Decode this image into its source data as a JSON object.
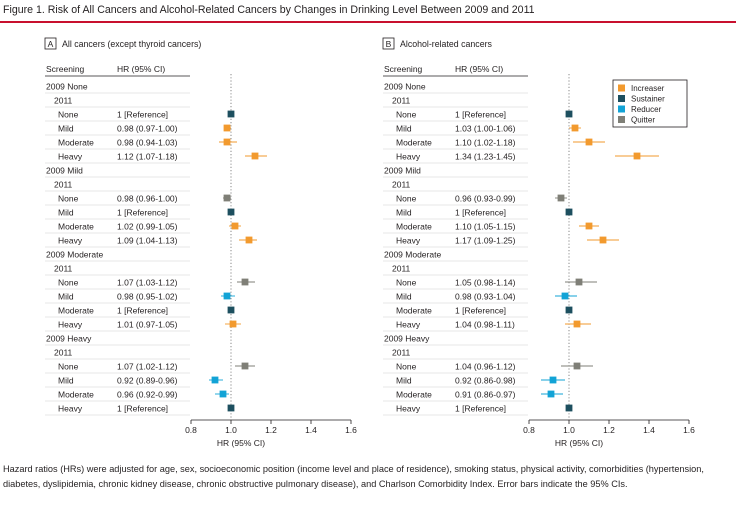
{
  "figure": {
    "title": "Figure 1. Risk of All Cancers and Alcohol-Related Cancers by Changes in Drinking Level Between 2009 and 2011",
    "footnote": "Hazard ratios (HRs) were adjusted for age, sex, socioeconomic position (income level and place of residence), smoking status, physical activity, comorbidities (hypertension, diabetes, dyslipidemia, chronic kidney disease, chronic obstructive pulmonary disease), and Charlson Comorbidity Index. Error bars indicate the 95% CIs."
  },
  "headers": {
    "screening": "Screening",
    "hr": "HR (95% CI)"
  },
  "legend": [
    {
      "name": "Increaser",
      "color": "#f29a2e"
    },
    {
      "name": "Sustainer",
      "color": "#1d4f5f"
    },
    {
      "name": "Reducer",
      "color": "#12a3d6"
    },
    {
      "name": "Quitter",
      "color": "#7f7f77"
    }
  ],
  "chart_data": [
    {
      "type": "forest",
      "panel_letter": "A",
      "title": "All cancers (except thyroid cancers)",
      "xlabel": "HR (95% CI)",
      "xlim": [
        0.8,
        1.6
      ],
      "xticks": [
        "0.8",
        "1.0",
        "1.2",
        "1.4",
        "1.6"
      ],
      "reference_line": 1.0,
      "groups": [
        {
          "label": "2009 None",
          "sublabel": "2011",
          "rows": [
            {
              "level": "None",
              "hr_text": "1 [Reference]",
              "hr": 1.0,
              "lo": null,
              "hi": null,
              "status": "Sustainer"
            },
            {
              "level": "Mild",
              "hr_text": "0.98 (0.97-1.00)",
              "hr": 0.98,
              "lo": 0.97,
              "hi": 1.0,
              "status": "Increaser"
            },
            {
              "level": "Moderate",
              "hr_text": "0.98 (0.94-1.03)",
              "hr": 0.98,
              "lo": 0.94,
              "hi": 1.03,
              "status": "Increaser"
            },
            {
              "level": "Heavy",
              "hr_text": "1.12 (1.07-1.18)",
              "hr": 1.12,
              "lo": 1.07,
              "hi": 1.18,
              "status": "Increaser"
            }
          ]
        },
        {
          "label": "2009 Mild",
          "sublabel": "2011",
          "rows": [
            {
              "level": "None",
              "hr_text": "0.98 (0.96-1.00)",
              "hr": 0.98,
              "lo": 0.96,
              "hi": 1.0,
              "status": "Quitter"
            },
            {
              "level": "Mild",
              "hr_text": "1 [Reference]",
              "hr": 1.0,
              "lo": null,
              "hi": null,
              "status": "Sustainer"
            },
            {
              "level": "Moderate",
              "hr_text": "1.02 (0.99-1.05)",
              "hr": 1.02,
              "lo": 0.99,
              "hi": 1.05,
              "status": "Increaser"
            },
            {
              "level": "Heavy",
              "hr_text": "1.09 (1.04-1.13)",
              "hr": 1.09,
              "lo": 1.04,
              "hi": 1.13,
              "status": "Increaser"
            }
          ]
        },
        {
          "label": "2009 Moderate",
          "sublabel": "2011",
          "rows": [
            {
              "level": "None",
              "hr_text": "1.07 (1.03-1.12)",
              "hr": 1.07,
              "lo": 1.03,
              "hi": 1.12,
              "status": "Quitter"
            },
            {
              "level": "Mild",
              "hr_text": "0.98 (0.95-1.02)",
              "hr": 0.98,
              "lo": 0.95,
              "hi": 1.02,
              "status": "Reducer"
            },
            {
              "level": "Moderate",
              "hr_text": "1 [Reference]",
              "hr": 1.0,
              "lo": null,
              "hi": null,
              "status": "Sustainer"
            },
            {
              "level": "Heavy",
              "hr_text": "1.01 (0.97-1.05)",
              "hr": 1.01,
              "lo": 0.97,
              "hi": 1.05,
              "status": "Increaser"
            }
          ]
        },
        {
          "label": "2009 Heavy",
          "sublabel": "2011",
          "rows": [
            {
              "level": "None",
              "hr_text": "1.07 (1.02-1.12)",
              "hr": 1.07,
              "lo": 1.02,
              "hi": 1.12,
              "status": "Quitter"
            },
            {
              "level": "Mild",
              "hr_text": "0.92 (0.89-0.96)",
              "hr": 0.92,
              "lo": 0.89,
              "hi": 0.96,
              "status": "Reducer"
            },
            {
              "level": "Moderate",
              "hr_text": "0.96 (0.92-0.99)",
              "hr": 0.96,
              "lo": 0.92,
              "hi": 0.99,
              "status": "Reducer"
            },
            {
              "level": "Heavy",
              "hr_text": "1 [Reference]",
              "hr": 1.0,
              "lo": null,
              "hi": null,
              "status": "Sustainer"
            }
          ]
        }
      ]
    },
    {
      "type": "forest",
      "panel_letter": "B",
      "title": "Alcohol-related cancers",
      "xlabel": "HR (95% CI)",
      "xlim": [
        0.8,
        1.6
      ],
      "xticks": [
        "0.8",
        "1.0",
        "1.2",
        "1.4",
        "1.6"
      ],
      "reference_line": 1.0,
      "groups": [
        {
          "label": "2009 None",
          "sublabel": "2011",
          "rows": [
            {
              "level": "None",
              "hr_text": "1 [Reference]",
              "hr": 1.0,
              "lo": null,
              "hi": null,
              "status": "Sustainer"
            },
            {
              "level": "Mild",
              "hr_text": "1.03 (1.00-1.06)",
              "hr": 1.03,
              "lo": 1.0,
              "hi": 1.06,
              "status": "Increaser"
            },
            {
              "level": "Moderate",
              "hr_text": "1.10 (1.02-1.18)",
              "hr": 1.1,
              "lo": 1.02,
              "hi": 1.18,
              "status": "Increaser"
            },
            {
              "level": "Heavy",
              "hr_text": "1.34 (1.23-1.45)",
              "hr": 1.34,
              "lo": 1.23,
              "hi": 1.45,
              "status": "Increaser"
            }
          ]
        },
        {
          "label": "2009 Mild",
          "sublabel": "2011",
          "rows": [
            {
              "level": "None",
              "hr_text": "0.96 (0.93-0.99)",
              "hr": 0.96,
              "lo": 0.93,
              "hi": 0.99,
              "status": "Quitter"
            },
            {
              "level": "Mild",
              "hr_text": "1 [Reference]",
              "hr": 1.0,
              "lo": null,
              "hi": null,
              "status": "Sustainer"
            },
            {
              "level": "Moderate",
              "hr_text": "1.10 (1.05-1.15)",
              "hr": 1.1,
              "lo": 1.05,
              "hi": 1.15,
              "status": "Increaser"
            },
            {
              "level": "Heavy",
              "hr_text": "1.17 (1.09-1.25)",
              "hr": 1.17,
              "lo": 1.09,
              "hi": 1.25,
              "status": "Increaser"
            }
          ]
        },
        {
          "label": "2009 Moderate",
          "sublabel": "2011",
          "rows": [
            {
              "level": "None",
              "hr_text": "1.05 (0.98-1.14)",
              "hr": 1.05,
              "lo": 0.98,
              "hi": 1.14,
              "status": "Quitter"
            },
            {
              "level": "Mild",
              "hr_text": "0.98 (0.93-1.04)",
              "hr": 0.98,
              "lo": 0.93,
              "hi": 1.04,
              "status": "Reducer"
            },
            {
              "level": "Moderate",
              "hr_text": "1 [Reference]",
              "hr": 1.0,
              "lo": null,
              "hi": null,
              "status": "Sustainer"
            },
            {
              "level": "Heavy",
              "hr_text": "1.04 (0.98-1.11)",
              "hr": 1.04,
              "lo": 0.98,
              "hi": 1.11,
              "status": "Increaser"
            }
          ]
        },
        {
          "label": "2009 Heavy",
          "sublabel": "2011",
          "rows": [
            {
              "level": "None",
              "hr_text": "1.04 (0.96-1.12)",
              "hr": 1.04,
              "lo": 0.96,
              "hi": 1.12,
              "status": "Quitter"
            },
            {
              "level": "Mild",
              "hr_text": "0.92 (0.86-0.98)",
              "hr": 0.92,
              "lo": 0.86,
              "hi": 0.98,
              "status": "Reducer"
            },
            {
              "level": "Moderate",
              "hr_text": "0.91 (0.86-0.97)",
              "hr": 0.91,
              "lo": 0.86,
              "hi": 0.97,
              "status": "Reducer"
            },
            {
              "level": "Heavy",
              "hr_text": "1 [Reference]",
              "hr": 1.0,
              "lo": null,
              "hi": null,
              "status": "Sustainer"
            }
          ]
        }
      ]
    }
  ]
}
